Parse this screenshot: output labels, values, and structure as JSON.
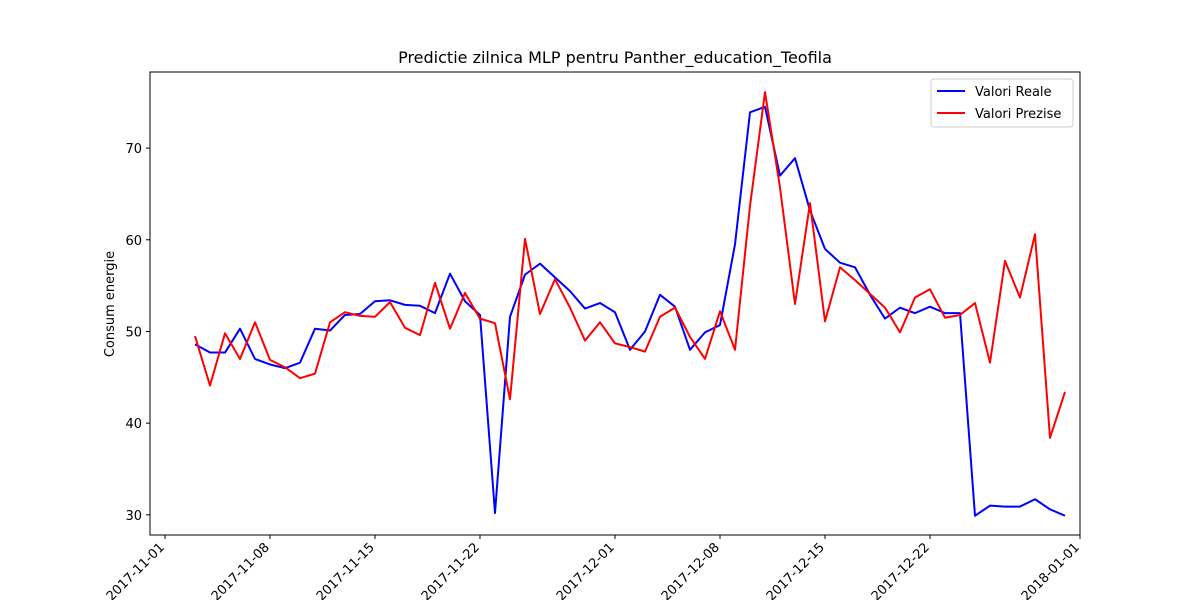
{
  "chart_data": {
    "type": "line",
    "title": "Predictie zilnica MLP pentru Panther_education_Teofila",
    "xlabel": "",
    "ylabel": "Consum energie",
    "x_start": "2017-11-03",
    "xlim": [
      "2017-10-31",
      "2018-01-01"
    ],
    "ylim": [
      27.8,
      78.3
    ],
    "x_ticks": [
      "2017-11-01",
      "2017-11-08",
      "2017-11-15",
      "2017-11-22",
      "2017-12-01",
      "2017-12-08",
      "2017-12-15",
      "2017-12-22",
      "2018-01-01"
    ],
    "y_ticks": [
      30,
      40,
      50,
      60,
      70
    ],
    "legend": {
      "position": "top-right"
    },
    "grid": false,
    "series": [
      {
        "name": "Valori Reale",
        "color": "#0000ff",
        "values": [
          48.6,
          47.7,
          47.7,
          50.3,
          47.0,
          46.4,
          46.0,
          46.6,
          50.3,
          50.1,
          51.8,
          51.9,
          53.3,
          53.4,
          52.9,
          52.8,
          52.0,
          56.3,
          53.3,
          51.8,
          30.2,
          51.6,
          56.2,
          57.4,
          55.9,
          54.4,
          52.5,
          53.1,
          52.1,
          48.0,
          50.0,
          54.0,
          52.7,
          48.0,
          49.9,
          50.7,
          59.5,
          73.9,
          74.5,
          67.0,
          68.9,
          63.2,
          59.0,
          57.5,
          57.0,
          54.0,
          51.4,
          52.6,
          52.0,
          52.7,
          52.0,
          52.0,
          29.9,
          31.0,
          30.9,
          30.9,
          31.7,
          30.6,
          29.9
        ]
      },
      {
        "name": "Valori Prezise",
        "color": "#ff0000",
        "values": [
          49.5,
          44.1,
          49.8,
          47.0,
          51.0,
          46.9,
          46.1,
          44.9,
          45.4,
          51.0,
          52.1,
          51.7,
          51.6,
          53.2,
          50.4,
          49.6,
          55.3,
          50.3,
          54.2,
          51.4,
          50.9,
          42.6,
          60.1,
          51.9,
          55.7,
          52.6,
          49.0,
          51.0,
          48.7,
          48.3,
          47.8,
          51.6,
          52.6,
          49.4,
          47.0,
          52.2,
          48.0,
          63.7,
          76.1,
          65.7,
          53.0,
          64.0,
          51.1,
          57.0,
          55.6,
          54.1,
          52.6,
          49.9,
          53.7,
          54.6,
          51.5,
          51.8,
          53.1,
          46.6,
          57.7,
          53.7,
          60.6,
          38.4,
          43.4
        ]
      }
    ]
  }
}
